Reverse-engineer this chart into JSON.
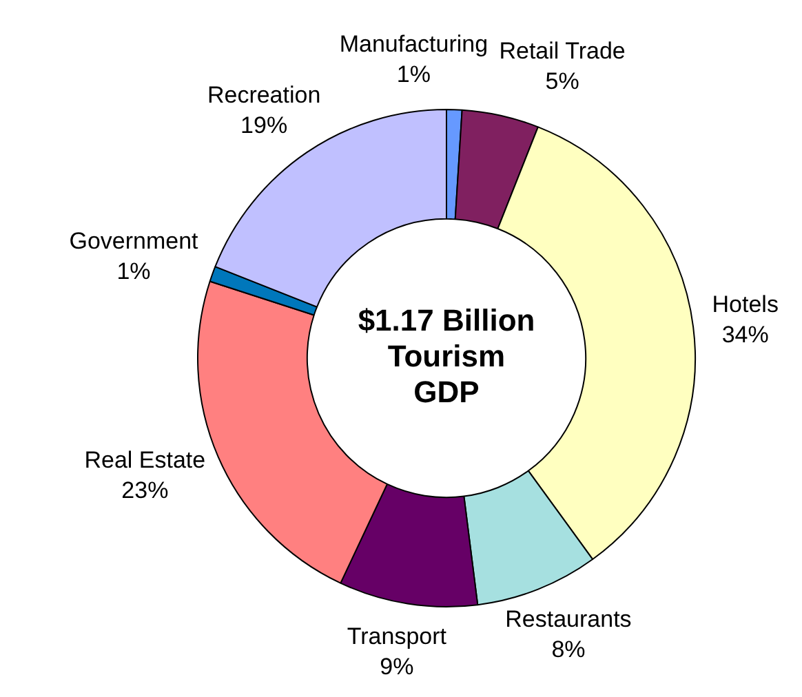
{
  "chart_data": {
    "type": "donut",
    "title": "$1.17 Billion\nTourism\nGDP",
    "categories": [
      "Manufacturing",
      "Retail Trade",
      "Hotels",
      "Restaurants",
      "Transport",
      "Real Estate",
      "Government",
      "Recreation"
    ],
    "values": [
      1,
      5,
      34,
      8,
      9,
      23,
      1,
      19
    ],
    "value_labels": [
      "1%",
      "5%",
      "34%",
      "8%",
      "9%",
      "23%",
      "1%",
      "19%"
    ],
    "colors": [
      "#6699ff",
      "#802060",
      "#ffffc0",
      "#a6e0e0",
      "#660066",
      "#ff8080",
      "#0077bb",
      "#c0c0ff"
    ],
    "legend": false
  }
}
